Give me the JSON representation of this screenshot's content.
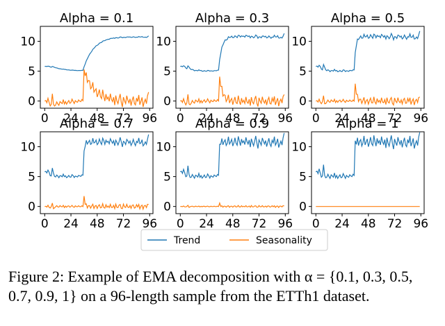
{
  "chart_data": {
    "type": "line",
    "panels": [
      {
        "title": "Alpha = 0.1",
        "alpha": 0.1
      },
      {
        "title": "Alpha = 0.3",
        "alpha": 0.3
      },
      {
        "title": "Alpha = 0.5",
        "alpha": 0.5
      },
      {
        "title": "Alpha = 0.7",
        "alpha": 0.7
      },
      {
        "title": "Alpha = 0.9",
        "alpha": 0.9
      },
      {
        "title": "Alpha = 1",
        "alpha": 1
      }
    ],
    "x_ticks": [
      0,
      24,
      48,
      72,
      96
    ],
    "y_ticks": [
      0,
      5,
      10
    ],
    "xlim": [
      -4,
      99
    ],
    "ylim": [
      -1.2,
      12.5
    ],
    "legend": [
      "Trend",
      "Seasonality"
    ],
    "legend_placement": "bottom-center",
    "colors": {
      "trend": "#1f77b4",
      "seasonality": "#ff7f0e"
    },
    "raw_series": [
      5.8,
      5.9,
      5.5,
      6.3,
      5.6,
      4.9,
      5.1,
      7.0,
      5.2,
      4.8,
      4.9,
      5.4,
      5.0,
      4.7,
      5.3,
      5.1,
      4.9,
      5.6,
      4.8,
      5.2,
      4.7,
      5.0,
      5.3,
      4.8,
      4.9,
      5.5,
      5.1,
      4.7,
      5.2,
      5.0,
      4.9,
      5.3,
      5.1,
      5.0,
      5.4,
      5.2,
      11.0,
      10.4,
      11.5,
      10.2,
      10.9,
      11.2,
      10.1,
      10.6,
      11.8,
      10.3,
      10.8,
      11.3,
      10.0,
      10.7,
      11.6,
      10.5,
      10.2,
      11.9,
      10.9,
      10.1,
      11.4,
      10.6,
      11.0,
      10.3,
      11.7,
      10.8,
      10.4,
      11.2,
      9.8,
      11.5,
      10.6,
      10.1,
      11.0,
      11.9,
      10.5,
      9.6,
      11.3,
      10.7,
      10.2,
      11.6,
      10.9,
      10.4,
      11.1,
      9.9,
      10.8,
      11.5,
      10.3,
      10.0,
      11.2,
      10.6,
      11.8,
      10.1,
      10.7,
      11.4,
      9.7,
      10.5,
      11.0,
      10.2,
      11.6,
      12.4
    ]
  },
  "caption": {
    "text": "Figure 2: Example of EMA decomposition with α = {0.1, 0.3, 0.5, 0.7, 0.9, 1} on a 96-length sample from the ETTh1 dataset."
  }
}
